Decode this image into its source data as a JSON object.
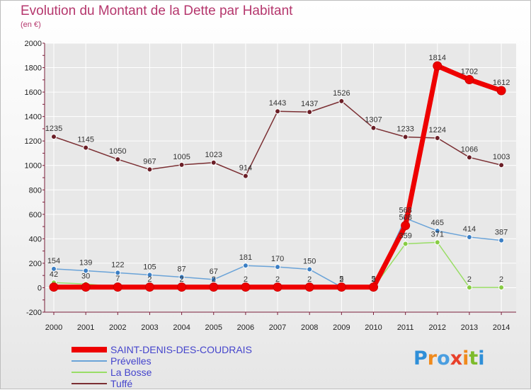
{
  "title": "Evolution du Montant de la Dette par Habitant",
  "subtitle": "(en €)",
  "logo": "Proxiti",
  "colors": {
    "title": "#b5376d",
    "grid": "#ffffff",
    "axis": "#7a1f3a"
  },
  "chart_data": {
    "type": "line",
    "x": [
      "2000",
      "2001",
      "2002",
      "2003",
      "2004",
      "2005",
      "2006",
      "2007",
      "2008",
      "2009",
      "2010",
      "2011",
      "2012",
      "2013",
      "2014"
    ],
    "ylim": [
      -200,
      2000
    ],
    "yticks": [
      -200,
      0,
      200,
      400,
      600,
      800,
      1000,
      1200,
      1400,
      1600,
      1800,
      2000
    ],
    "grid": true,
    "legend_position": "bottom-left",
    "series": [
      {
        "name": "SAINT-DENIS-DES-COUDRAIS",
        "color": "#ee0000",
        "marker": "#ee0000",
        "labelColor": "#4444cc",
        "values": [
          5,
          5,
          5,
          5,
          5,
          5,
          5,
          5,
          5,
          5,
          5,
          508,
          1814,
          1702,
          1612
        ],
        "labels": [
          "",
          "",
          "",
          "",
          "",
          "",
          "",
          "",
          "",
          "",
          "",
          "508",
          "1814",
          "1702",
          "1612"
        ]
      },
      {
        "name": "Prévelles",
        "color": "#6aa3d8",
        "marker": "#3c7fc4",
        "labelColor": "#4444cc",
        "values": [
          154,
          139,
          122,
          105,
          87,
          67,
          181,
          170,
          150,
          5,
          5,
          568,
          465,
          414,
          387
        ],
        "labels": [
          "154",
          "139",
          "122",
          "105",
          "87",
          "67",
          "181",
          "170",
          "150",
          "5",
          "5",
          "568",
          "465",
          "414",
          "387"
        ]
      },
      {
        "name": "La Bosse",
        "color": "#99dd66",
        "marker": "#88cc44",
        "labelColor": "#4444cc",
        "values": [
          42,
          30,
          7,
          2,
          2,
          2,
          2,
          2,
          2,
          2,
          2,
          359,
          371,
          2,
          2
        ],
        "labels": [
          "42",
          "30",
          "7",
          "2",
          "2",
          "2",
          "2",
          "2",
          "2",
          "2",
          "2",
          "359",
          "371",
          "2",
          "2"
        ]
      },
      {
        "name": "Tuffé",
        "color": "#7b2f33",
        "marker": "#6b1f27",
        "labelColor": "#4444cc",
        "values": [
          1235,
          1145,
          1050,
          967,
          1005,
          1023,
          914,
          1443,
          1437,
          1526,
          1307,
          1233,
          1224,
          1066,
          1003
        ],
        "labels": [
          "1235",
          "1145",
          "1050",
          "967",
          "1005",
          "1023",
          "914",
          "1443",
          "1437",
          "1526",
          "1307",
          "1233",
          "1224",
          "1066",
          "1003"
        ]
      }
    ]
  }
}
